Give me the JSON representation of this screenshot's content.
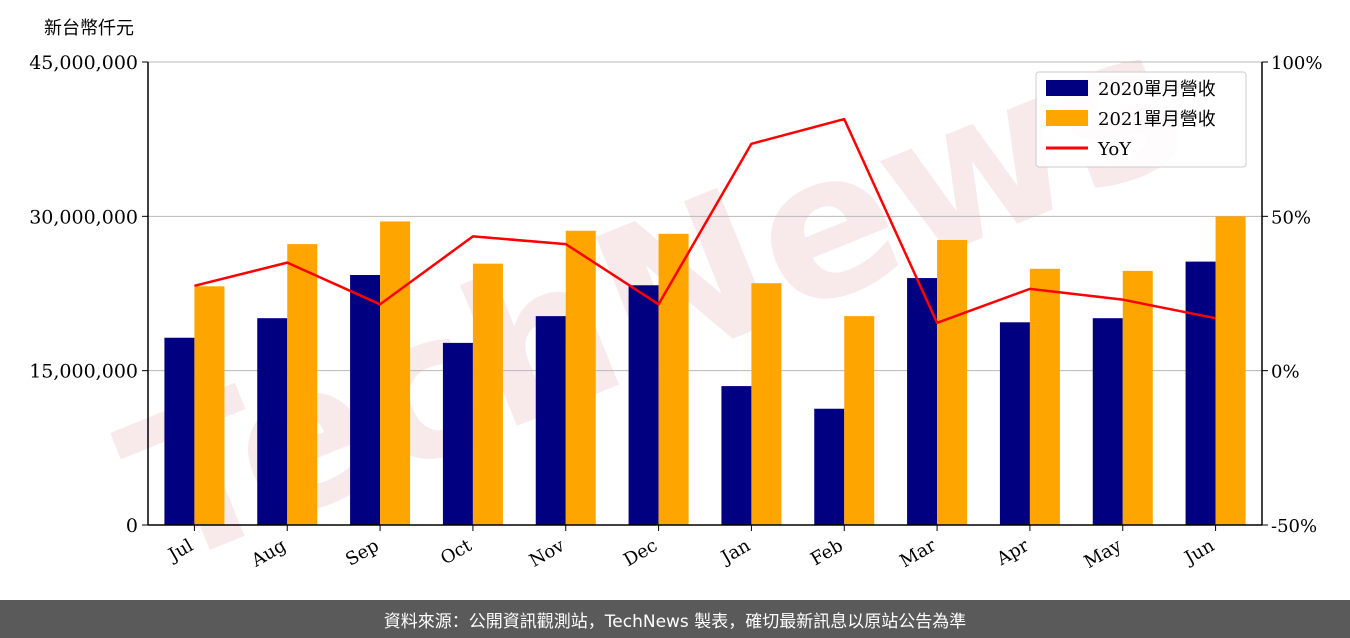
{
  "chart_data": {
    "type": "bar",
    "unit_label": "新台幣仟元",
    "categories": [
      "Jul",
      "Aug",
      "Sep",
      "Oct",
      "Nov",
      "Dec",
      "Jan",
      "Feb",
      "Mar",
      "Apr",
      "May",
      "Jun"
    ],
    "series": [
      {
        "name": "2020單月營收",
        "type": "bar",
        "axis": "left",
        "color": "#000080",
        "values": [
          18200000,
          20100000,
          24300000,
          17700000,
          20300000,
          23300000,
          13500000,
          11300000,
          24000000,
          19700000,
          20100000,
          25600000
        ]
      },
      {
        "name": "2021單月營收",
        "type": "bar",
        "axis": "left",
        "color": "#ffa500",
        "values": [
          23200000,
          27300000,
          29500000,
          25400000,
          28600000,
          28300000,
          23500000,
          20300000,
          27700000,
          24900000,
          24700000,
          30000000
        ]
      },
      {
        "name": "YoY",
        "type": "line",
        "axis": "right",
        "color": "#ff0000",
        "values": [
          27.5,
          35,
          21.5,
          43.5,
          41,
          21.5,
          73.5,
          81.5,
          15.5,
          26.5,
          23,
          17
        ]
      }
    ],
    "left_axis": {
      "ylim": [
        0,
        45000000
      ],
      "ticks": [
        0,
        15000000,
        30000000,
        45000000
      ],
      "tick_labels": [
        "0",
        "15,000,000",
        "30,000,000",
        "45,000,000"
      ]
    },
    "right_axis": {
      "ylim": [
        -50,
        100
      ],
      "ticks": [
        -50,
        0,
        50,
        100
      ],
      "tick_labels": [
        "-50%",
        "0%",
        "50%",
        "100%"
      ]
    },
    "grid": "horizontal",
    "legend_position": "top-right"
  },
  "watermark": "TechNews",
  "footer": {
    "text": "資料來源：公開資訊觀測站，TechNews 製表，確切最新訊息以原站公告為準"
  }
}
